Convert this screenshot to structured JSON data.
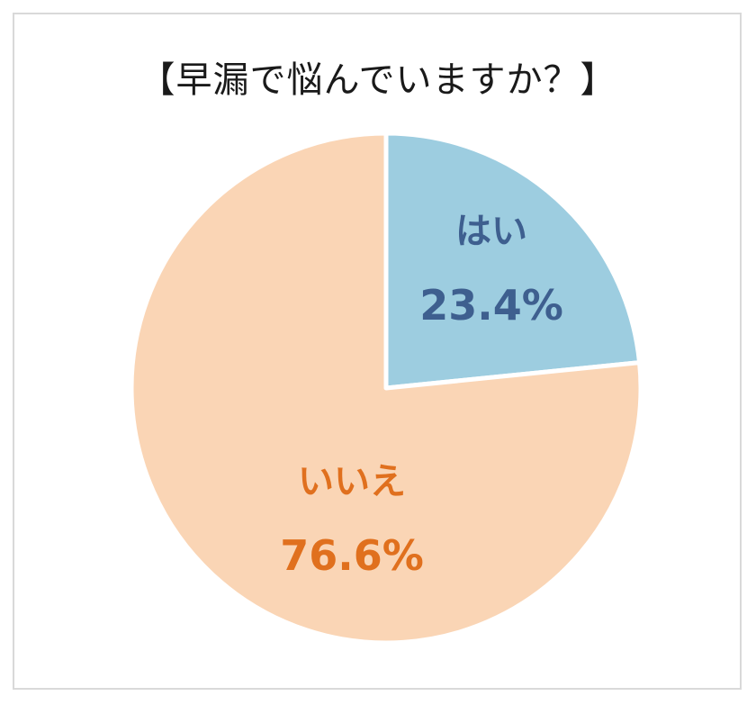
{
  "chart_data": {
    "type": "pie",
    "title": "【早漏で悩んでいますか？】",
    "slices": [
      {
        "label": "はい",
        "value": 23.4,
        "value_label": "23.4%",
        "color": "#9dcde0",
        "text_color": "#3e5f8f"
      },
      {
        "label": "いいえ",
        "value": 76.6,
        "value_label": "76.6%",
        "color": "#fad5b5",
        "text_color": "#e0701e"
      }
    ],
    "start_angle": "12 o'clock",
    "direction": "clockwise",
    "slice_border_color": "#ffffff",
    "legend": "none"
  }
}
